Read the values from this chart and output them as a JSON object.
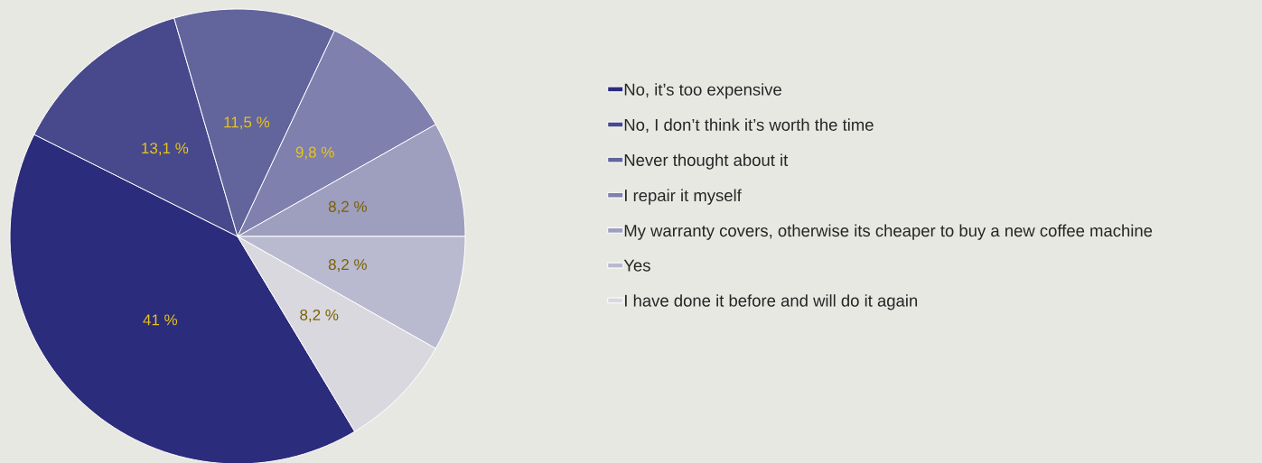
{
  "chart_data": {
    "type": "pie",
    "categories": [
      "No, it’s too expensive",
      "No, I don’t think it’s worth the time",
      "Never thought about it",
      "I repair it myself",
      "My warranty covers, otherwise its cheaper to buy a new coffee machine",
      "Yes",
      "I have done it before and will do it again"
    ],
    "values": [
      41,
      13.1,
      11.5,
      9.8,
      8.2,
      8.2,
      8.2
    ],
    "colors": [
      "#2b2c7c",
      "#47498c",
      "#62649c",
      "#7f80ae",
      "#9e9ebf",
      "#b9b9d0",
      "#d8d8de"
    ],
    "value_labels": [
      "41 %",
      "13,1 %",
      "11,5 %",
      "9,8 %",
      "8,2 %",
      "8,2 %",
      "8,2 %"
    ],
    "legend": "right"
  }
}
